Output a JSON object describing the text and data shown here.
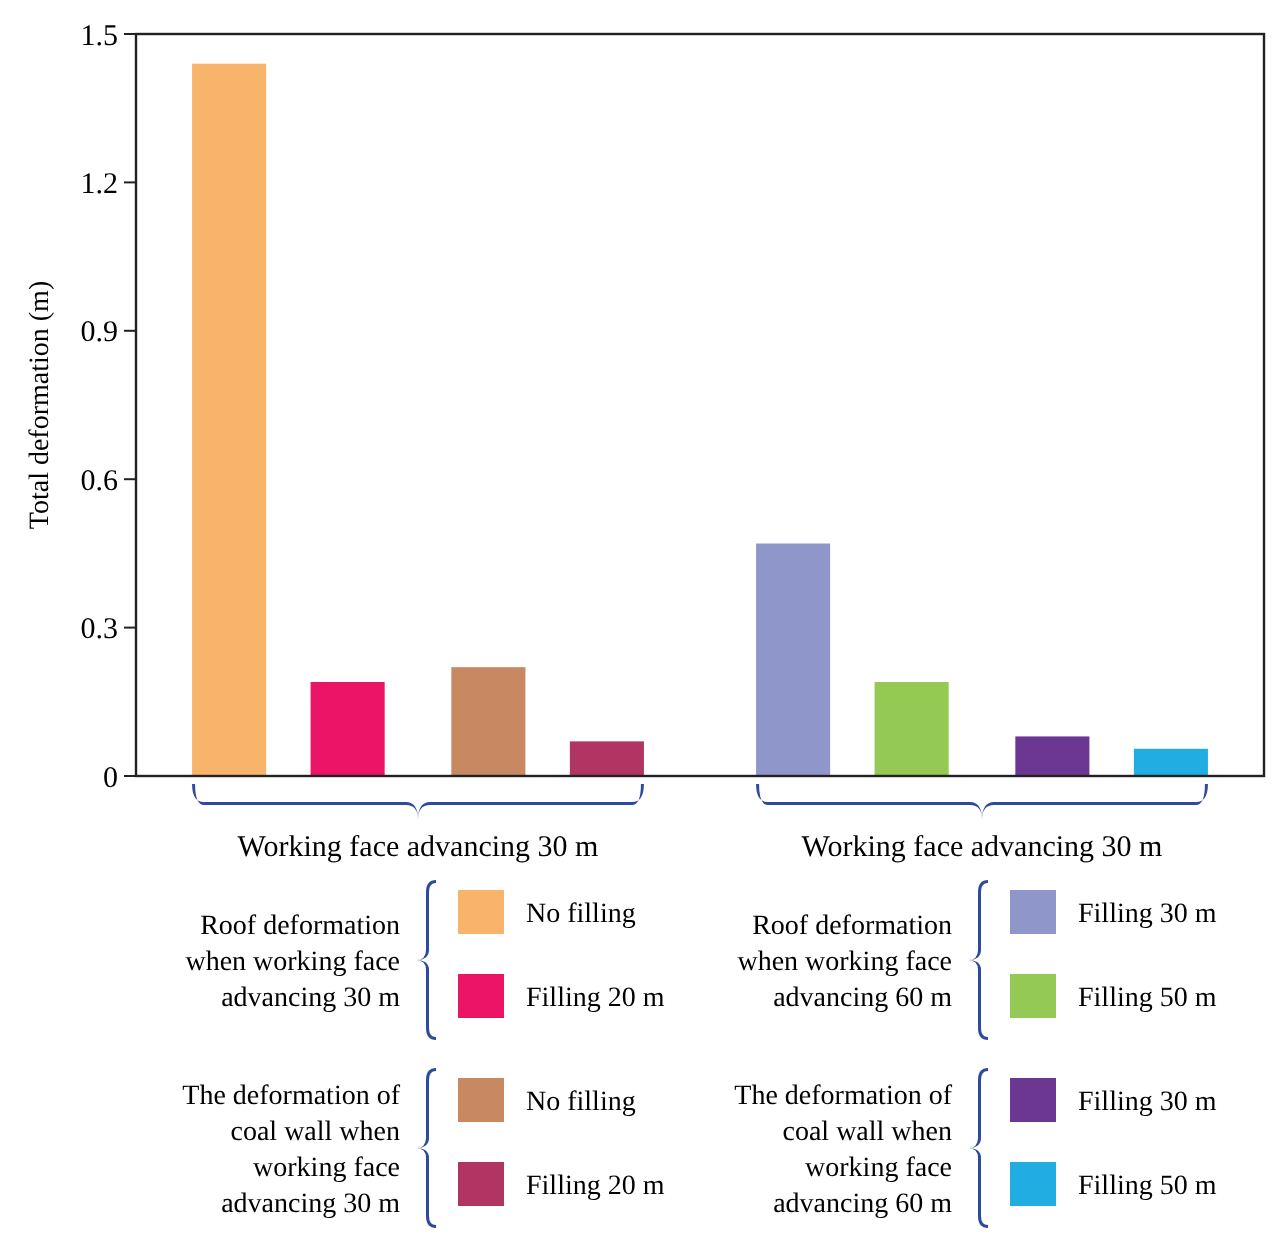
{
  "chart_data": {
    "type": "bar",
    "ylabel": "Total deformation (m)",
    "categories": [
      "Working face advancing 30 m",
      "Working face advancing 30 m"
    ],
    "ylim": [
      0,
      1.5
    ],
    "yticks": [
      0,
      0.3,
      0.6,
      0.9,
      1.2,
      1.5
    ],
    "grid": false,
    "legend": "bottom",
    "series": [
      {
        "name": "No filling",
        "color": "#f9b46b",
        "values": [
          1.44,
          null
        ]
      },
      {
        "name": "Filling 20 m",
        "color": "#ec1465",
        "values": [
          0.19,
          null
        ]
      },
      {
        "name": "No filling",
        "color": "#c88862",
        "values": [
          0.22,
          null
        ]
      },
      {
        "name": "Filling 20 m",
        "color": "#b03563",
        "values": [
          0.07,
          null
        ]
      },
      {
        "name": "Filling 30 m",
        "color": "#8f97ca",
        "values": [
          null,
          0.47
        ]
      },
      {
        "name": "Filling 50 m",
        "color": "#94c954",
        "values": [
          null,
          0.19
        ]
      },
      {
        "name": "Filling 30 m",
        "color": "#6b3793",
        "values": [
          null,
          0.08
        ]
      },
      {
        "name": "Filling 50 m",
        "color": "#22ade2",
        "values": [
          null,
          0.055
        ]
      }
    ],
    "annotations": [
      "Roof deformation when working face advancing 30 m",
      "The deformation of coal wall when working face advancing 30 m",
      "Roof deformation when working face advancing 60 m",
      "The deformation of coal wall when working face advancing 60 m"
    ]
  }
}
